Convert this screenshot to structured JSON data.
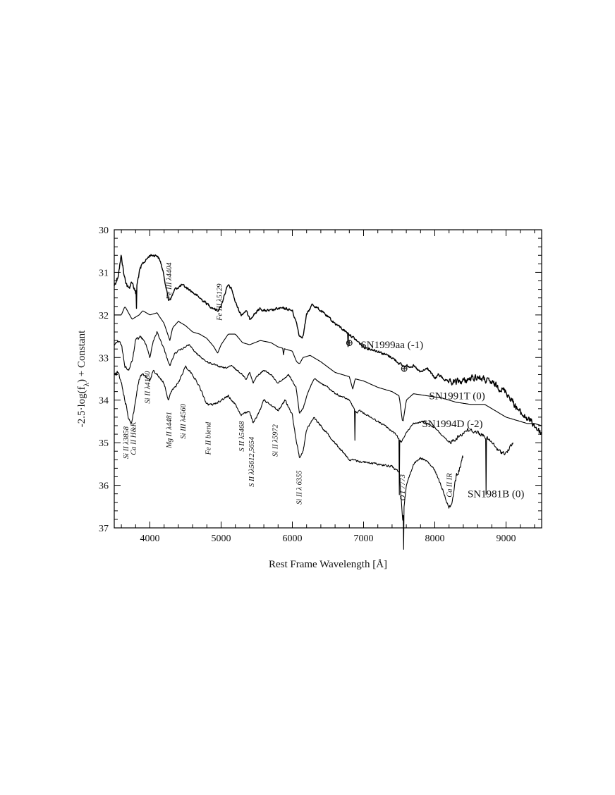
{
  "chart_data": {
    "type": "line",
    "title": "",
    "xlabel": "Rest Frame Wavelength [Å]",
    "ylabel_parts": {
      "prefix": "-2.5·log(f",
      "subscript": "λ",
      "suffix": ") + Constant"
    },
    "xlim": [
      3500,
      9500
    ],
    "ylim": [
      37,
      30
    ],
    "y_inverted": true,
    "x_ticks": [
      4000,
      5000,
      6000,
      7000,
      8000,
      9000
    ],
    "x_tick_labels": [
      "4000",
      "5000",
      "6000",
      "7000",
      "8000",
      "9000"
    ],
    "y_ticks": [
      30,
      31,
      32,
      33,
      34,
      35,
      36,
      37
    ],
    "y_tick_labels": [
      "30",
      "31",
      "32",
      "33",
      "34",
      "35",
      "36",
      "37"
    ],
    "grid": false,
    "series": [
      {
        "name": "SN1999aa (-1)",
        "color": "#000000",
        "noise": 0.05,
        "points": [
          [
            3500,
            31.3
          ],
          [
            3550,
            31.1
          ],
          [
            3600,
            30.6
          ],
          [
            3640,
            31.1
          ],
          [
            3700,
            31.4
          ],
          [
            3750,
            31.2
          ],
          [
            3800,
            31.5
          ],
          [
            3850,
            31.0
          ],
          [
            3900,
            30.8
          ],
          [
            4000,
            30.6
          ],
          [
            4100,
            30.6
          ],
          [
            4150,
            30.75
          ],
          [
            4200,
            31.1
          ],
          [
            4260,
            31.65
          ],
          [
            4300,
            31.6
          ],
          [
            4350,
            31.4
          ],
          [
            4450,
            31.3
          ],
          [
            4550,
            31.4
          ],
          [
            4700,
            31.6
          ],
          [
            4850,
            31.8
          ],
          [
            4950,
            31.9
          ],
          [
            5000,
            31.8
          ],
          [
            5050,
            31.5
          ],
          [
            5100,
            31.3
          ],
          [
            5150,
            31.4
          ],
          [
            5200,
            31.7
          ],
          [
            5280,
            32.0
          ],
          [
            5350,
            31.9
          ],
          [
            5400,
            32.1
          ],
          [
            5450,
            32.0
          ],
          [
            5550,
            31.85
          ],
          [
            5600,
            31.9
          ],
          [
            5700,
            31.9
          ],
          [
            5800,
            31.85
          ],
          [
            5900,
            31.85
          ],
          [
            6000,
            31.9
          ],
          [
            6060,
            32.2
          ],
          [
            6100,
            32.5
          ],
          [
            6150,
            32.5
          ],
          [
            6200,
            32.0
          ],
          [
            6280,
            31.75
          ],
          [
            6400,
            31.9
          ],
          [
            6600,
            32.2
          ],
          [
            6800,
            32.45
          ],
          [
            7000,
            32.75
          ],
          [
            7200,
            32.85
          ],
          [
            7400,
            33.0
          ],
          [
            7550,
            33.2
          ],
          [
            7700,
            33.2
          ],
          [
            7800,
            33.35
          ],
          [
            7900,
            33.25
          ],
          [
            8000,
            33.5
          ],
          [
            8050,
            33.4
          ],
          [
            8200,
            33.6
          ],
          [
            8400,
            33.55
          ],
          [
            8600,
            33.45
          ],
          [
            8800,
            33.6
          ],
          [
            9000,
            33.8
          ],
          [
            9200,
            34.3
          ],
          [
            9350,
            34.5
          ],
          [
            9500,
            34.8
          ]
        ]
      },
      {
        "name": "SN1991T (0)",
        "color": "#000000",
        "noise": 0,
        "points": [
          [
            3500,
            32.0
          ],
          [
            3600,
            32.0
          ],
          [
            3650,
            31.8
          ],
          [
            3700,
            31.95
          ],
          [
            3750,
            32.1
          ],
          [
            3800,
            32.05
          ],
          [
            3850,
            32.0
          ],
          [
            3900,
            31.9
          ],
          [
            4000,
            32.0
          ],
          [
            4100,
            31.95
          ],
          [
            4200,
            32.2
          ],
          [
            4280,
            32.6
          ],
          [
            4320,
            32.3
          ],
          [
            4400,
            32.15
          ],
          [
            4500,
            32.25
          ],
          [
            4600,
            32.4
          ],
          [
            4700,
            32.45
          ],
          [
            4800,
            32.55
          ],
          [
            4900,
            32.75
          ],
          [
            4950,
            32.9
          ],
          [
            5000,
            32.7
          ],
          [
            5100,
            32.45
          ],
          [
            5200,
            32.45
          ],
          [
            5300,
            32.65
          ],
          [
            5400,
            32.7
          ],
          [
            5550,
            32.6
          ],
          [
            5700,
            32.65
          ],
          [
            5800,
            32.75
          ],
          [
            5900,
            32.8
          ],
          [
            6000,
            32.85
          ],
          [
            6060,
            33.1
          ],
          [
            6100,
            33.15
          ],
          [
            6150,
            33.0
          ],
          [
            6250,
            32.95
          ],
          [
            6400,
            33.1
          ],
          [
            6600,
            33.35
          ],
          [
            6800,
            33.45
          ],
          [
            6850,
            33.75
          ],
          [
            6880,
            33.5
          ],
          [
            7000,
            33.55
          ],
          [
            7200,
            33.7
          ],
          [
            7400,
            33.8
          ],
          [
            7500,
            33.9
          ],
          [
            7550,
            34.55
          ],
          [
            7600,
            34.0
          ],
          [
            7700,
            33.85
          ],
          [
            7900,
            33.9
          ],
          [
            8100,
            33.95
          ],
          [
            8300,
            34.05
          ],
          [
            8500,
            34.1
          ],
          [
            8700,
            34.1
          ],
          [
            8850,
            34.25
          ],
          [
            9000,
            34.4
          ],
          [
            9100,
            34.45
          ],
          [
            9200,
            34.5
          ],
          [
            9300,
            34.55
          ],
          [
            9400,
            34.55
          ],
          [
            9500,
            34.6
          ]
        ]
      },
      {
        "name": "SN1994D (-2)",
        "color": "#000000",
        "noise": 0.03,
        "points": [
          [
            3500,
            32.7
          ],
          [
            3550,
            32.6
          ],
          [
            3600,
            32.7
          ],
          [
            3650,
            33.2
          ],
          [
            3700,
            33.3
          ],
          [
            3750,
            33.1
          ],
          [
            3800,
            32.6
          ],
          [
            3870,
            32.5
          ],
          [
            3950,
            32.7
          ],
          [
            4000,
            33.0
          ],
          [
            4050,
            32.6
          ],
          [
            4100,
            32.4
          ],
          [
            4200,
            32.8
          ],
          [
            4280,
            33.2
          ],
          [
            4350,
            32.9
          ],
          [
            4450,
            32.8
          ],
          [
            4550,
            32.7
          ],
          [
            4650,
            32.9
          ],
          [
            4800,
            33.1
          ],
          [
            4950,
            33.2
          ],
          [
            5050,
            33.25
          ],
          [
            5150,
            33.2
          ],
          [
            5300,
            33.4
          ],
          [
            5350,
            33.5
          ],
          [
            5400,
            33.35
          ],
          [
            5450,
            33.6
          ],
          [
            5500,
            33.45
          ],
          [
            5600,
            33.3
          ],
          [
            5700,
            33.4
          ],
          [
            5800,
            33.6
          ],
          [
            5950,
            33.4
          ],
          [
            6050,
            33.7
          ],
          [
            6100,
            34.3
          ],
          [
            6150,
            34.2
          ],
          [
            6200,
            33.9
          ],
          [
            6300,
            33.5
          ],
          [
            6400,
            33.6
          ],
          [
            6500,
            33.7
          ],
          [
            6600,
            33.85
          ],
          [
            6800,
            34.0
          ],
          [
            6900,
            34.3
          ],
          [
            6950,
            34.25
          ],
          [
            7100,
            34.4
          ],
          [
            7300,
            34.6
          ],
          [
            7450,
            34.8
          ],
          [
            7530,
            35.0
          ],
          [
            7600,
            34.75
          ],
          [
            7700,
            34.55
          ],
          [
            7850,
            34.5
          ],
          [
            8000,
            34.65
          ],
          [
            8200,
            35.0
          ],
          [
            8300,
            34.9
          ],
          [
            8450,
            34.7
          ],
          [
            8600,
            34.75
          ],
          [
            8700,
            34.85
          ],
          [
            8800,
            35.0
          ],
          [
            8900,
            35.2
          ],
          [
            9000,
            35.25
          ],
          [
            9100,
            35.0
          ]
        ]
      },
      {
        "name": "SN1981B (0)",
        "color": "#000000",
        "noise": 0.04,
        "points": [
          [
            3500,
            33.4
          ],
          [
            3550,
            33.35
          ],
          [
            3600,
            33.6
          ],
          [
            3650,
            34.0
          ],
          [
            3700,
            34.4
          ],
          [
            3740,
            34.55
          ],
          [
            3780,
            34.2
          ],
          [
            3850,
            33.5
          ],
          [
            3900,
            33.4
          ],
          [
            4000,
            33.55
          ],
          [
            4050,
            33.3
          ],
          [
            4150,
            33.5
          ],
          [
            4200,
            33.6
          ],
          [
            4260,
            34.0
          ],
          [
            4300,
            33.8
          ],
          [
            4400,
            33.6
          ],
          [
            4500,
            33.2
          ],
          [
            4600,
            33.4
          ],
          [
            4700,
            33.7
          ],
          [
            4800,
            34.1
          ],
          [
            4900,
            34.1
          ],
          [
            5000,
            34.0
          ],
          [
            5100,
            33.9
          ],
          [
            5200,
            34.1
          ],
          [
            5280,
            34.35
          ],
          [
            5350,
            34.3
          ],
          [
            5400,
            34.25
          ],
          [
            5450,
            34.55
          ],
          [
            5500,
            34.4
          ],
          [
            5600,
            34.0
          ],
          [
            5700,
            34.1
          ],
          [
            5800,
            34.25
          ],
          [
            5900,
            34.0
          ],
          [
            6000,
            34.35
          ],
          [
            6060,
            35.0
          ],
          [
            6100,
            35.35
          ],
          [
            6150,
            35.2
          ],
          [
            6200,
            34.7
          ],
          [
            6300,
            34.4
          ],
          [
            6400,
            34.6
          ],
          [
            6600,
            35.0
          ],
          [
            6800,
            35.4
          ],
          [
            7000,
            35.45
          ],
          [
            7200,
            35.5
          ],
          [
            7400,
            35.55
          ],
          [
            7500,
            35.7
          ],
          [
            7550,
            36.8
          ],
          [
            7600,
            36.0
          ],
          [
            7700,
            35.5
          ],
          [
            7800,
            35.35
          ],
          [
            7900,
            35.45
          ],
          [
            8000,
            35.65
          ],
          [
            8100,
            36.05
          ],
          [
            8200,
            36.55
          ],
          [
            8250,
            36.3
          ],
          [
            8300,
            35.8
          ],
          [
            8350,
            35.6
          ],
          [
            8400,
            35.3
          ]
        ]
      }
    ],
    "spikes": [
      {
        "series": 0,
        "x": 3810,
        "depth": 0.45
      },
      {
        "series": 0,
        "x": 6780,
        "depth": 0.3
      },
      {
        "series": 1,
        "x": 5880,
        "depth": 0.15
      },
      {
        "series": 2,
        "x": 6880,
        "depth": 0.7
      },
      {
        "series": 2,
        "x": 7500,
        "depth": 1.3
      },
      {
        "series": 2,
        "x": 8720,
        "depth": 1.3
      },
      {
        "series": 3,
        "x": 7560,
        "depth": 0.9
      }
    ],
    "annotations": {
      "line_ids": [
        {
          "text": "Si II λ3858",
          "x": 3700,
          "y": 35.0
        },
        {
          "text": "Ca II H&K",
          "x": 3800,
          "y": 34.9
        },
        {
          "text": "Si II λ4130",
          "x": 4000,
          "y": 33.7
        },
        {
          "text": "Mg II λ4481",
          "x": 4300,
          "y": 34.7
        },
        {
          "text": "Si III λ4560",
          "x": 4500,
          "y": 34.5
        },
        {
          "text": "Fe III λ4404",
          "x": 4300,
          "y": 31.2
        },
        {
          "text": "Fe III λ5129",
          "x": 5010,
          "y": 31.7
        },
        {
          "text": "Fe II blend",
          "x": 4850,
          "y": 34.9
        },
        {
          "text": "S II λ5468",
          "x": 5320,
          "y": 34.85
        },
        {
          "text": "S II λλ5612,5654",
          "x": 5460,
          "y": 35.45
        },
        {
          "text": "Si II λ5972",
          "x": 5790,
          "y": 34.95
        },
        {
          "text": "Si II λ 6355",
          "x": 6130,
          "y": 36.05
        },
        {
          "text": "O I 7773",
          "x": 7580,
          "y": 36.05
        },
        {
          "text": "Ca II IR",
          "x": 8240,
          "y": 36.0
        }
      ],
      "earth_symbol": "⊕",
      "telluric_markers": [
        {
          "x": 6800,
          "y": 32.65
        },
        {
          "x": 7570,
          "y": 33.25
        }
      ],
      "sn_labels": [
        {
          "text": "SN1999aa (-1)",
          "x": 6960,
          "y": 32.7
        },
        {
          "text": "SN1991T (0)",
          "x": 7920,
          "y": 33.9
        },
        {
          "text": "SN1994D (-2)",
          "x": 7820,
          "y": 34.55
        },
        {
          "text": "SN1981B (0)",
          "x": 8460,
          "y": 36.2
        }
      ]
    }
  }
}
